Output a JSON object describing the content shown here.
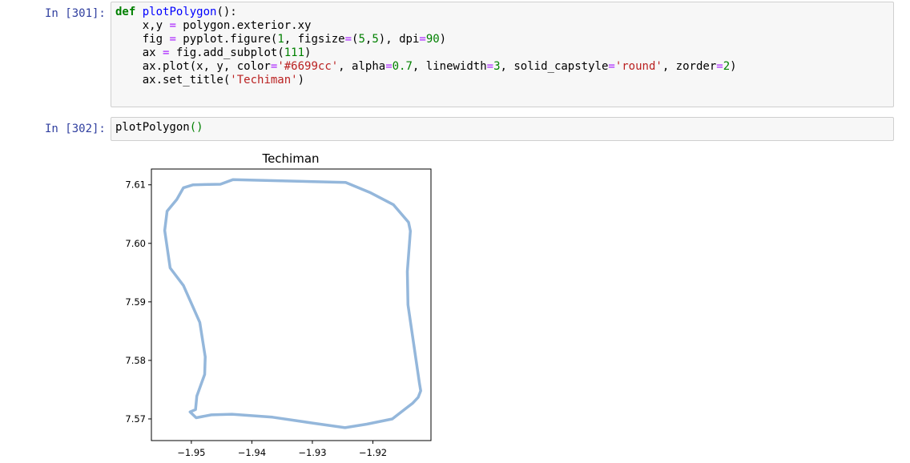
{
  "cell1": {
    "prompt": "In [301]:",
    "code_lines": [
      [
        [
          "kw",
          "def"
        ],
        [
          "",
          " "
        ],
        [
          "fn",
          "plotPolygon"
        ],
        [
          "",
          "():"
        ]
      ],
      [
        [
          "",
          "    x,y "
        ],
        [
          "op",
          "="
        ],
        [
          "",
          ""
        ],
        [
          "",
          " polygon.exterior.xy"
        ]
      ],
      [
        [
          "",
          "    fig "
        ],
        [
          "op",
          "="
        ],
        [
          "",
          " pyplot.figure("
        ],
        [
          "num",
          "1"
        ],
        [
          "",
          ", figsize"
        ],
        [
          "op",
          "="
        ],
        [
          "",
          "("
        ],
        [
          "num",
          "5"
        ],
        [
          "",
          ","
        ],
        [
          "num",
          "5"
        ],
        [
          "",
          "), dpi"
        ],
        [
          "op",
          "="
        ],
        [
          "num",
          "90"
        ],
        [
          "",
          ")"
        ]
      ],
      [
        [
          "",
          "    ax "
        ],
        [
          "op",
          "="
        ],
        [
          "",
          " fig.add_subplot("
        ],
        [
          "num",
          "111"
        ],
        [
          "",
          ")"
        ]
      ],
      [
        [
          "",
          "    ax.plot(x, y, color"
        ],
        [
          "op",
          "="
        ],
        [
          "str",
          "'#6699cc'"
        ],
        [
          "",
          ", alpha"
        ],
        [
          "op",
          "="
        ],
        [
          "num",
          "0.7"
        ],
        [
          "",
          ", linewidth"
        ],
        [
          "op",
          "="
        ],
        [
          "num",
          "3"
        ],
        [
          "",
          ", solid_capstyle"
        ],
        [
          "op",
          "="
        ],
        [
          "str",
          "'round'"
        ],
        [
          "",
          ", zorder"
        ],
        [
          "op",
          "="
        ],
        [
          "num",
          "2"
        ],
        [
          "",
          ")"
        ]
      ],
      [
        [
          "",
          "    ax.set_title("
        ],
        [
          "str",
          "'Techiman'"
        ],
        [
          "",
          ")"
        ]
      ]
    ]
  },
  "cell2": {
    "prompt": "In [302]:",
    "code_lines": [
      [
        [
          "",
          "plotPolygon"
        ],
        [
          "par",
          "()"
        ]
      ]
    ]
  },
  "chart_data": {
    "type": "line",
    "title": "Techiman",
    "xlabel": "",
    "ylabel": "",
    "xlim": [
      -1.9566,
      -1.9104
    ],
    "ylim": [
      7.5663,
      7.6127
    ],
    "xticks": [
      -1.95,
      -1.94,
      -1.93,
      -1.92
    ],
    "xtick_labels": [
      "−1.95",
      "−1.94",
      "−1.93",
      "−1.92"
    ],
    "yticks": [
      7.57,
      7.58,
      7.59,
      7.6,
      7.61
    ],
    "ytick_labels": [
      "7.57",
      "7.58",
      "7.59",
      "7.60",
      "7.61"
    ],
    "grid": false,
    "line_color": "#6699cc",
    "alpha": 0.7,
    "series": [
      {
        "x": [
          -1.9513,
          -1.9497,
          -1.9452,
          -1.9431,
          -1.9245,
          -1.9205,
          -1.9166,
          -1.9141,
          -1.9138,
          -1.9143,
          -1.9142,
          -1.9123,
          -1.9121,
          -1.9125,
          -1.9134,
          -1.9168,
          -1.921,
          -1.9246,
          -1.93,
          -1.9366,
          -1.9433,
          -1.9467,
          -1.9492,
          -1.9502,
          -1.9493,
          -1.9491,
          -1.9478,
          -1.9477,
          -1.9486,
          -1.9513,
          -1.9535,
          -1.9544,
          -1.954,
          -1.9524,
          -1.9513
        ],
        "y": [
          7.6095,
          7.61,
          7.6101,
          7.6109,
          7.6104,
          7.6087,
          7.6066,
          7.6036,
          7.6021,
          7.5952,
          7.5895,
          7.5761,
          7.5748,
          7.5737,
          7.5727,
          7.57,
          7.5691,
          7.5685,
          7.5693,
          7.5703,
          7.5708,
          7.5707,
          7.5702,
          7.5712,
          7.5716,
          7.5739,
          7.5776,
          7.5806,
          7.5865,
          7.5928,
          7.5958,
          7.6022,
          7.6055,
          7.6075,
          7.6095
        ]
      }
    ]
  }
}
